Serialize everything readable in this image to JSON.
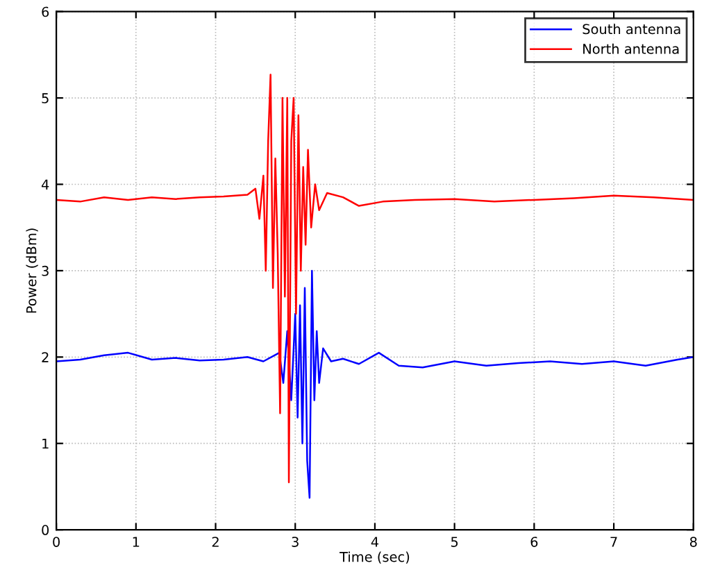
{
  "chart_data": {
    "type": "line",
    "xlabel": "Time (sec)",
    "ylabel": "Power (dBm)",
    "xlim": [
      0,
      8
    ],
    "ylim": [
      0,
      6
    ],
    "xticks": [
      0,
      1,
      2,
      3,
      4,
      5,
      6,
      7,
      8
    ],
    "yticks": [
      0,
      1,
      2,
      3,
      4,
      5,
      6
    ],
    "grid": true,
    "legend": "top right",
    "line_style": "solid",
    "marker": "none",
    "series": [
      {
        "name": "South antenna",
        "color": "#0000ff",
        "x": [
          0,
          0.3,
          0.6,
          0.9,
          1.2,
          1.5,
          1.8,
          2.1,
          2.4,
          2.6,
          2.8,
          2.85,
          2.9,
          2.95,
          3.0,
          3.03,
          3.06,
          3.09,
          3.12,
          3.15,
          3.18,
          3.21,
          3.24,
          3.27,
          3.3,
          3.35,
          3.45,
          3.6,
          3.8,
          4.05,
          4.3,
          4.6,
          5.0,
          5.4,
          5.8,
          6.2,
          6.6,
          7.0,
          7.4,
          7.8,
          8
        ],
        "values": [
          1.95,
          1.97,
          2.02,
          2.05,
          1.97,
          1.99,
          1.96,
          1.97,
          2.0,
          1.95,
          2.05,
          1.7,
          2.3,
          1.5,
          2.5,
          1.3,
          2.6,
          1.0,
          2.8,
          0.8,
          0.37,
          3.0,
          1.5,
          2.3,
          1.7,
          2.1,
          1.95,
          1.98,
          1.92,
          2.05,
          1.9,
          1.88,
          1.95,
          1.9,
          1.93,
          1.95,
          1.92,
          1.95,
          1.9,
          1.97,
          2.0
        ]
      },
      {
        "name": "North antenna",
        "color": "#ff0000",
        "x": [
          0,
          0.3,
          0.6,
          0.9,
          1.2,
          1.5,
          1.8,
          2.1,
          2.4,
          2.5,
          2.55,
          2.6,
          2.63,
          2.66,
          2.69,
          2.72,
          2.75,
          2.78,
          2.81,
          2.84,
          2.87,
          2.9,
          2.92,
          2.95,
          2.98,
          3.01,
          3.04,
          3.07,
          3.1,
          3.13,
          3.16,
          3.2,
          3.25,
          3.3,
          3.4,
          3.6,
          3.8,
          4.1,
          4.5,
          5.0,
          5.5,
          6.0,
          6.5,
          7.0,
          7.5,
          8
        ],
        "values": [
          3.82,
          3.8,
          3.85,
          3.82,
          3.85,
          3.83,
          3.85,
          3.86,
          3.88,
          3.95,
          3.6,
          4.1,
          3.0,
          4.5,
          5.27,
          2.8,
          4.3,
          3.2,
          1.35,
          5.0,
          2.7,
          5.0,
          0.55,
          4.5,
          5.0,
          2.5,
          4.8,
          3.0,
          4.2,
          3.3,
          4.4,
          3.5,
          4.0,
          3.7,
          3.9,
          3.85,
          3.75,
          3.8,
          3.82,
          3.83,
          3.8,
          3.82,
          3.84,
          3.87,
          3.85,
          3.82
        ]
      }
    ]
  }
}
